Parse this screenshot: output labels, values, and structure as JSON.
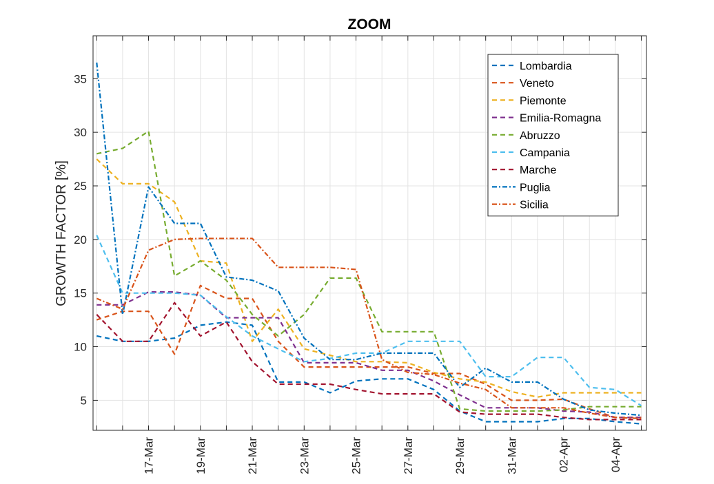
{
  "chart_data": {
    "type": "line",
    "title": "ZOOM",
    "xlabel": "",
    "ylabel": "GROWTH FACTOR [%]",
    "x": [
      "15-Mar",
      "16-Mar",
      "17-Mar",
      "18-Mar",
      "19-Mar",
      "20-Mar",
      "21-Mar",
      "22-Mar",
      "23-Mar",
      "24-Mar",
      "25-Mar",
      "26-Mar",
      "27-Mar",
      "28-Mar",
      "29-Mar",
      "30-Mar",
      "31-Mar",
      "01-Apr",
      "02-Apr",
      "03-Apr",
      "04-Apr",
      "05-Apr"
    ],
    "xtick_labels": [
      "17-Mar",
      "19-Mar",
      "21-Mar",
      "23-Mar",
      "25-Mar",
      "27-Mar",
      "29-Mar",
      "31-Mar",
      "02-Apr",
      "04-Apr"
    ],
    "xlim": [
      "15-Mar",
      "05-Apr"
    ],
    "ylim": [
      2.2,
      39
    ],
    "yticks": [
      5,
      10,
      15,
      20,
      25,
      30,
      35
    ],
    "grid": true,
    "legend_position": "top-right",
    "series": [
      {
        "name": "Lombardia",
        "color": "#0072BD",
        "dash": "dashed",
        "values": [
          11.0,
          10.5,
          10.5,
          10.8,
          12.0,
          12.3,
          12.0,
          6.7,
          6.7,
          5.7,
          6.8,
          7.0,
          7.0,
          6.0,
          4.0,
          3.0,
          3.0,
          3.0,
          3.3,
          3.3,
          3.0,
          2.8
        ]
      },
      {
        "name": "Veneto",
        "color": "#D95319",
        "dash": "dashed",
        "values": [
          12.5,
          13.3,
          13.3,
          9.3,
          15.7,
          14.5,
          14.5,
          10.5,
          8.1,
          8.1,
          8.1,
          8.1,
          8.1,
          7.5,
          7.5,
          6.5,
          5.0,
          5.0,
          5.1,
          4.2,
          3.4,
          3.4
        ]
      },
      {
        "name": "Piemonte",
        "color": "#EDB120",
        "dash": "dashed",
        "values": [
          27.5,
          25.2,
          25.2,
          23.5,
          18.0,
          17.8,
          10.5,
          13.5,
          9.8,
          9.2,
          8.6,
          8.6,
          8.5,
          7.6,
          7.0,
          6.7,
          5.8,
          5.3,
          5.7,
          5.7,
          5.7,
          5.7
        ]
      },
      {
        "name": "Emilia-Romagna",
        "color": "#7E2F8E",
        "dash": "dashed",
        "values": [
          13.9,
          13.9,
          15.1,
          15.1,
          14.8,
          12.7,
          12.7,
          12.7,
          8.5,
          8.5,
          8.5,
          7.8,
          7.8,
          6.8,
          5.5,
          4.3,
          4.3,
          4.3,
          4.0,
          3.9,
          3.4,
          3.4
        ]
      },
      {
        "name": "Abruzzo",
        "color": "#77AC30",
        "dash": "dashed",
        "values": [
          28.0,
          28.5,
          30.1,
          16.6,
          18.0,
          16.2,
          13.0,
          11.0,
          13.0,
          16.4,
          16.4,
          11.4,
          11.4,
          11.4,
          4.2,
          4.0,
          4.0,
          4.0,
          4.1,
          4.4,
          4.4,
          4.4
        ]
      },
      {
        "name": "Campania",
        "color": "#4DBEEE",
        "dash": "dashed",
        "values": [
          20.4,
          15.0,
          15.0,
          15.0,
          14.8,
          12.8,
          11.0,
          9.8,
          8.6,
          8.9,
          9.4,
          9.4,
          10.5,
          10.5,
          10.5,
          7.2,
          7.2,
          9.0,
          9.0,
          6.2,
          6.0,
          4.5
        ]
      },
      {
        "name": "Marche",
        "color": "#A2142F",
        "dash": "dashed",
        "values": [
          13.0,
          10.5,
          10.5,
          14.1,
          11.0,
          12.3,
          8.6,
          6.5,
          6.5,
          6.5,
          6.0,
          5.6,
          5.6,
          5.6,
          3.9,
          3.7,
          3.7,
          3.7,
          3.4,
          3.2,
          3.2,
          3.2
        ]
      },
      {
        "name": "Puglia",
        "color": "#0072BD",
        "dash": "dashdot",
        "values": [
          36.5,
          13.0,
          24.9,
          21.5,
          21.5,
          16.5,
          16.2,
          15.2,
          10.8,
          8.8,
          8.8,
          9.4,
          9.4,
          9.4,
          6.2,
          8.0,
          6.7,
          6.7,
          5.1,
          4.1,
          3.8,
          3.6
        ]
      },
      {
        "name": "Sicilia",
        "color": "#D95319",
        "dash": "dashdot",
        "values": [
          14.5,
          13.5,
          19.0,
          20.0,
          20.1,
          20.1,
          20.1,
          17.4,
          17.4,
          17.4,
          17.2,
          8.8,
          7.6,
          7.4,
          6.6,
          6.0,
          4.3,
          4.3,
          4.3,
          3.8,
          3.4,
          3.3
        ]
      }
    ]
  }
}
